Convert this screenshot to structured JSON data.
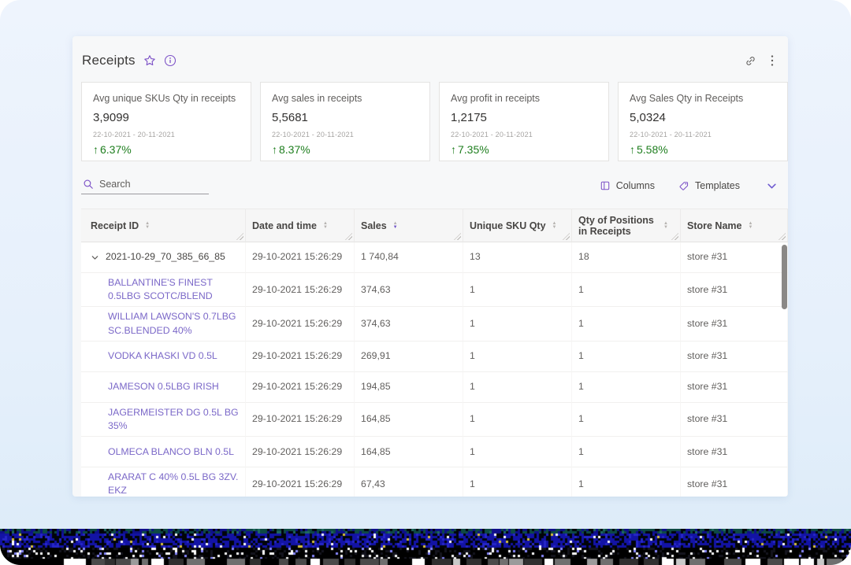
{
  "widget": {
    "title": "Receipts"
  },
  "kpis": [
    {
      "title": "Avg unique SKUs Qty in receipts",
      "value": "3,9099",
      "period": "22-10-2021 - 20-11-2021",
      "change": "6.37%"
    },
    {
      "title": "Avg sales in receipts",
      "value": "5,5681",
      "period": "22-10-2021 - 20-11-2021",
      "change": "8.37%"
    },
    {
      "title": "Avg profit in receipts",
      "value": "1,2175",
      "period": "22-10-2021 - 20-11-2021",
      "change": "7.35%"
    },
    {
      "title": "Avg Sales Qty in Receipts",
      "value": "5,0324",
      "period": "22-10-2021 - 20-11-2021",
      "change": "5.58%"
    }
  ],
  "toolbar": {
    "search_placeholder": "Search",
    "columns_label": "Columns",
    "templates_label": "Templates"
  },
  "table": {
    "columns": [
      {
        "label": "Receipt ID",
        "sort": "none"
      },
      {
        "label": "Date and time",
        "sort": "none"
      },
      {
        "label": "Sales",
        "sort": "desc"
      },
      {
        "label": "Unique SKU Qty",
        "sort": "none"
      },
      {
        "label": "Qty of Positions in Receipts",
        "sort": "none"
      },
      {
        "label": "Store Name",
        "sort": "none"
      }
    ],
    "rows": [
      {
        "type": "parent",
        "expanded": true,
        "name": "2021-10-29_70_385_66_85",
        "datetime": "29-10-2021 15:26:29",
        "sales": "1 740,84",
        "unique_sku_qty": "13",
        "positions_qty": "18",
        "store": "store #31"
      },
      {
        "type": "child",
        "name": "BALLANTINE'S FINEST 0.5LBG SCOTC/BLEND",
        "datetime": "29-10-2021 15:26:29",
        "sales": "374,63",
        "unique_sku_qty": "1",
        "positions_qty": "1",
        "store": "store #31"
      },
      {
        "type": "child",
        "name": "WILLIAM LAWSON'S 0.7LBG SC.BLENDED 40%",
        "datetime": "29-10-2021 15:26:29",
        "sales": "374,63",
        "unique_sku_qty": "1",
        "positions_qty": "1",
        "store": "store #31"
      },
      {
        "type": "child",
        "name": "VODKA KHASKI VD 0.5L",
        "datetime": "29-10-2021 15:26:29",
        "sales": "269,91",
        "unique_sku_qty": "1",
        "positions_qty": "1",
        "store": "store #31"
      },
      {
        "type": "child",
        "name": "JAMESON 0.5LBG IRISH",
        "datetime": "29-10-2021 15:26:29",
        "sales": "194,85",
        "unique_sku_qty": "1",
        "positions_qty": "1",
        "store": "store #31"
      },
      {
        "type": "child",
        "name": "JAGERMEISTER DG 0.5L BG 35%",
        "datetime": "29-10-2021 15:26:29",
        "sales": "164,85",
        "unique_sku_qty": "1",
        "positions_qty": "1",
        "store": "store #31"
      },
      {
        "type": "child",
        "name": "OLMECA BLANCO BLN 0.5L",
        "datetime": "29-10-2021 15:26:29",
        "sales": "164,85",
        "unique_sku_qty": "1",
        "positions_qty": "1",
        "store": "store #31"
      },
      {
        "type": "child",
        "name": "ARARAT C 40% 0.5L BG 3ZV. EKZ",
        "datetime": "29-10-2021 15:26:29",
        "sales": "67,43",
        "unique_sku_qty": "1",
        "positions_qty": "1",
        "store": "store #31"
      }
    ]
  },
  "colors": {
    "accent": "#7d52c7",
    "positive": "#1e7e1e",
    "link": "#7b68c8"
  }
}
